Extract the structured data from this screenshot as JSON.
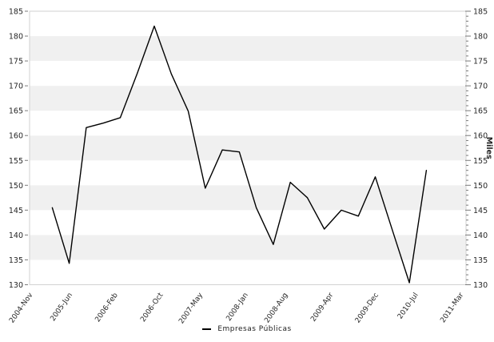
{
  "chart_data": {
    "type": "line",
    "title": "",
    "x_axis": {
      "total_months": 77,
      "ticks": [
        {
          "label": "2004-Nov",
          "month": 0
        },
        {
          "label": "2005-Jun",
          "month": 7
        },
        {
          "label": "2006-Feb",
          "month": 15
        },
        {
          "label": "2006-Oct",
          "month": 23
        },
        {
          "label": "2007-May",
          "month": 30
        },
        {
          "label": "2008-Jan",
          "month": 38
        },
        {
          "label": "2008-Aug",
          "month": 45
        },
        {
          "label": "2009-Apr",
          "month": 53
        },
        {
          "label": "2009-Dec",
          "month": 61
        },
        {
          "label": "2010-Jul",
          "month": 68
        },
        {
          "label": "2011-Mar",
          "month": 76
        }
      ]
    },
    "y_axis": {
      "min": 130,
      "max": 185,
      "major_step": 5,
      "minor_step": 1,
      "tick_labels": [
        130,
        135,
        140,
        145,
        150,
        155,
        160,
        165,
        170,
        175,
        180,
        185
      ],
      "right_title": "Miles"
    },
    "series": [
      {
        "name": "Empresas Públicas",
        "color": "#000000",
        "x_months": [
          4,
          7,
          10,
          13,
          16,
          19,
          22,
          25,
          28,
          31,
          34,
          37,
          40,
          43,
          46,
          49,
          52,
          55,
          58,
          61,
          64,
          67,
          70
        ],
        "values": [
          145.5,
          134.3,
          161.6,
          162.5,
          163.6,
          172.5,
          182.0,
          172.4,
          164.9,
          149.4,
          157.1,
          156.7,
          145.5,
          138.1,
          150.6,
          147.5,
          141.2,
          145.0,
          143.8,
          151.7,
          141.0,
          130.4,
          153.0
        ]
      }
    ],
    "legend": {
      "position": "bottom",
      "items": [
        "Empresas Públicas"
      ]
    },
    "grid": {
      "style": "horizontal-bands",
      "band_values": "alternating 5-unit bands"
    },
    "colors": {
      "band": "#f0f0f0",
      "background": "#ffffff",
      "plot_border": "#d2d2d2",
      "tick": "#7a7a7a",
      "text": "#262626",
      "line": "#000000"
    }
  }
}
